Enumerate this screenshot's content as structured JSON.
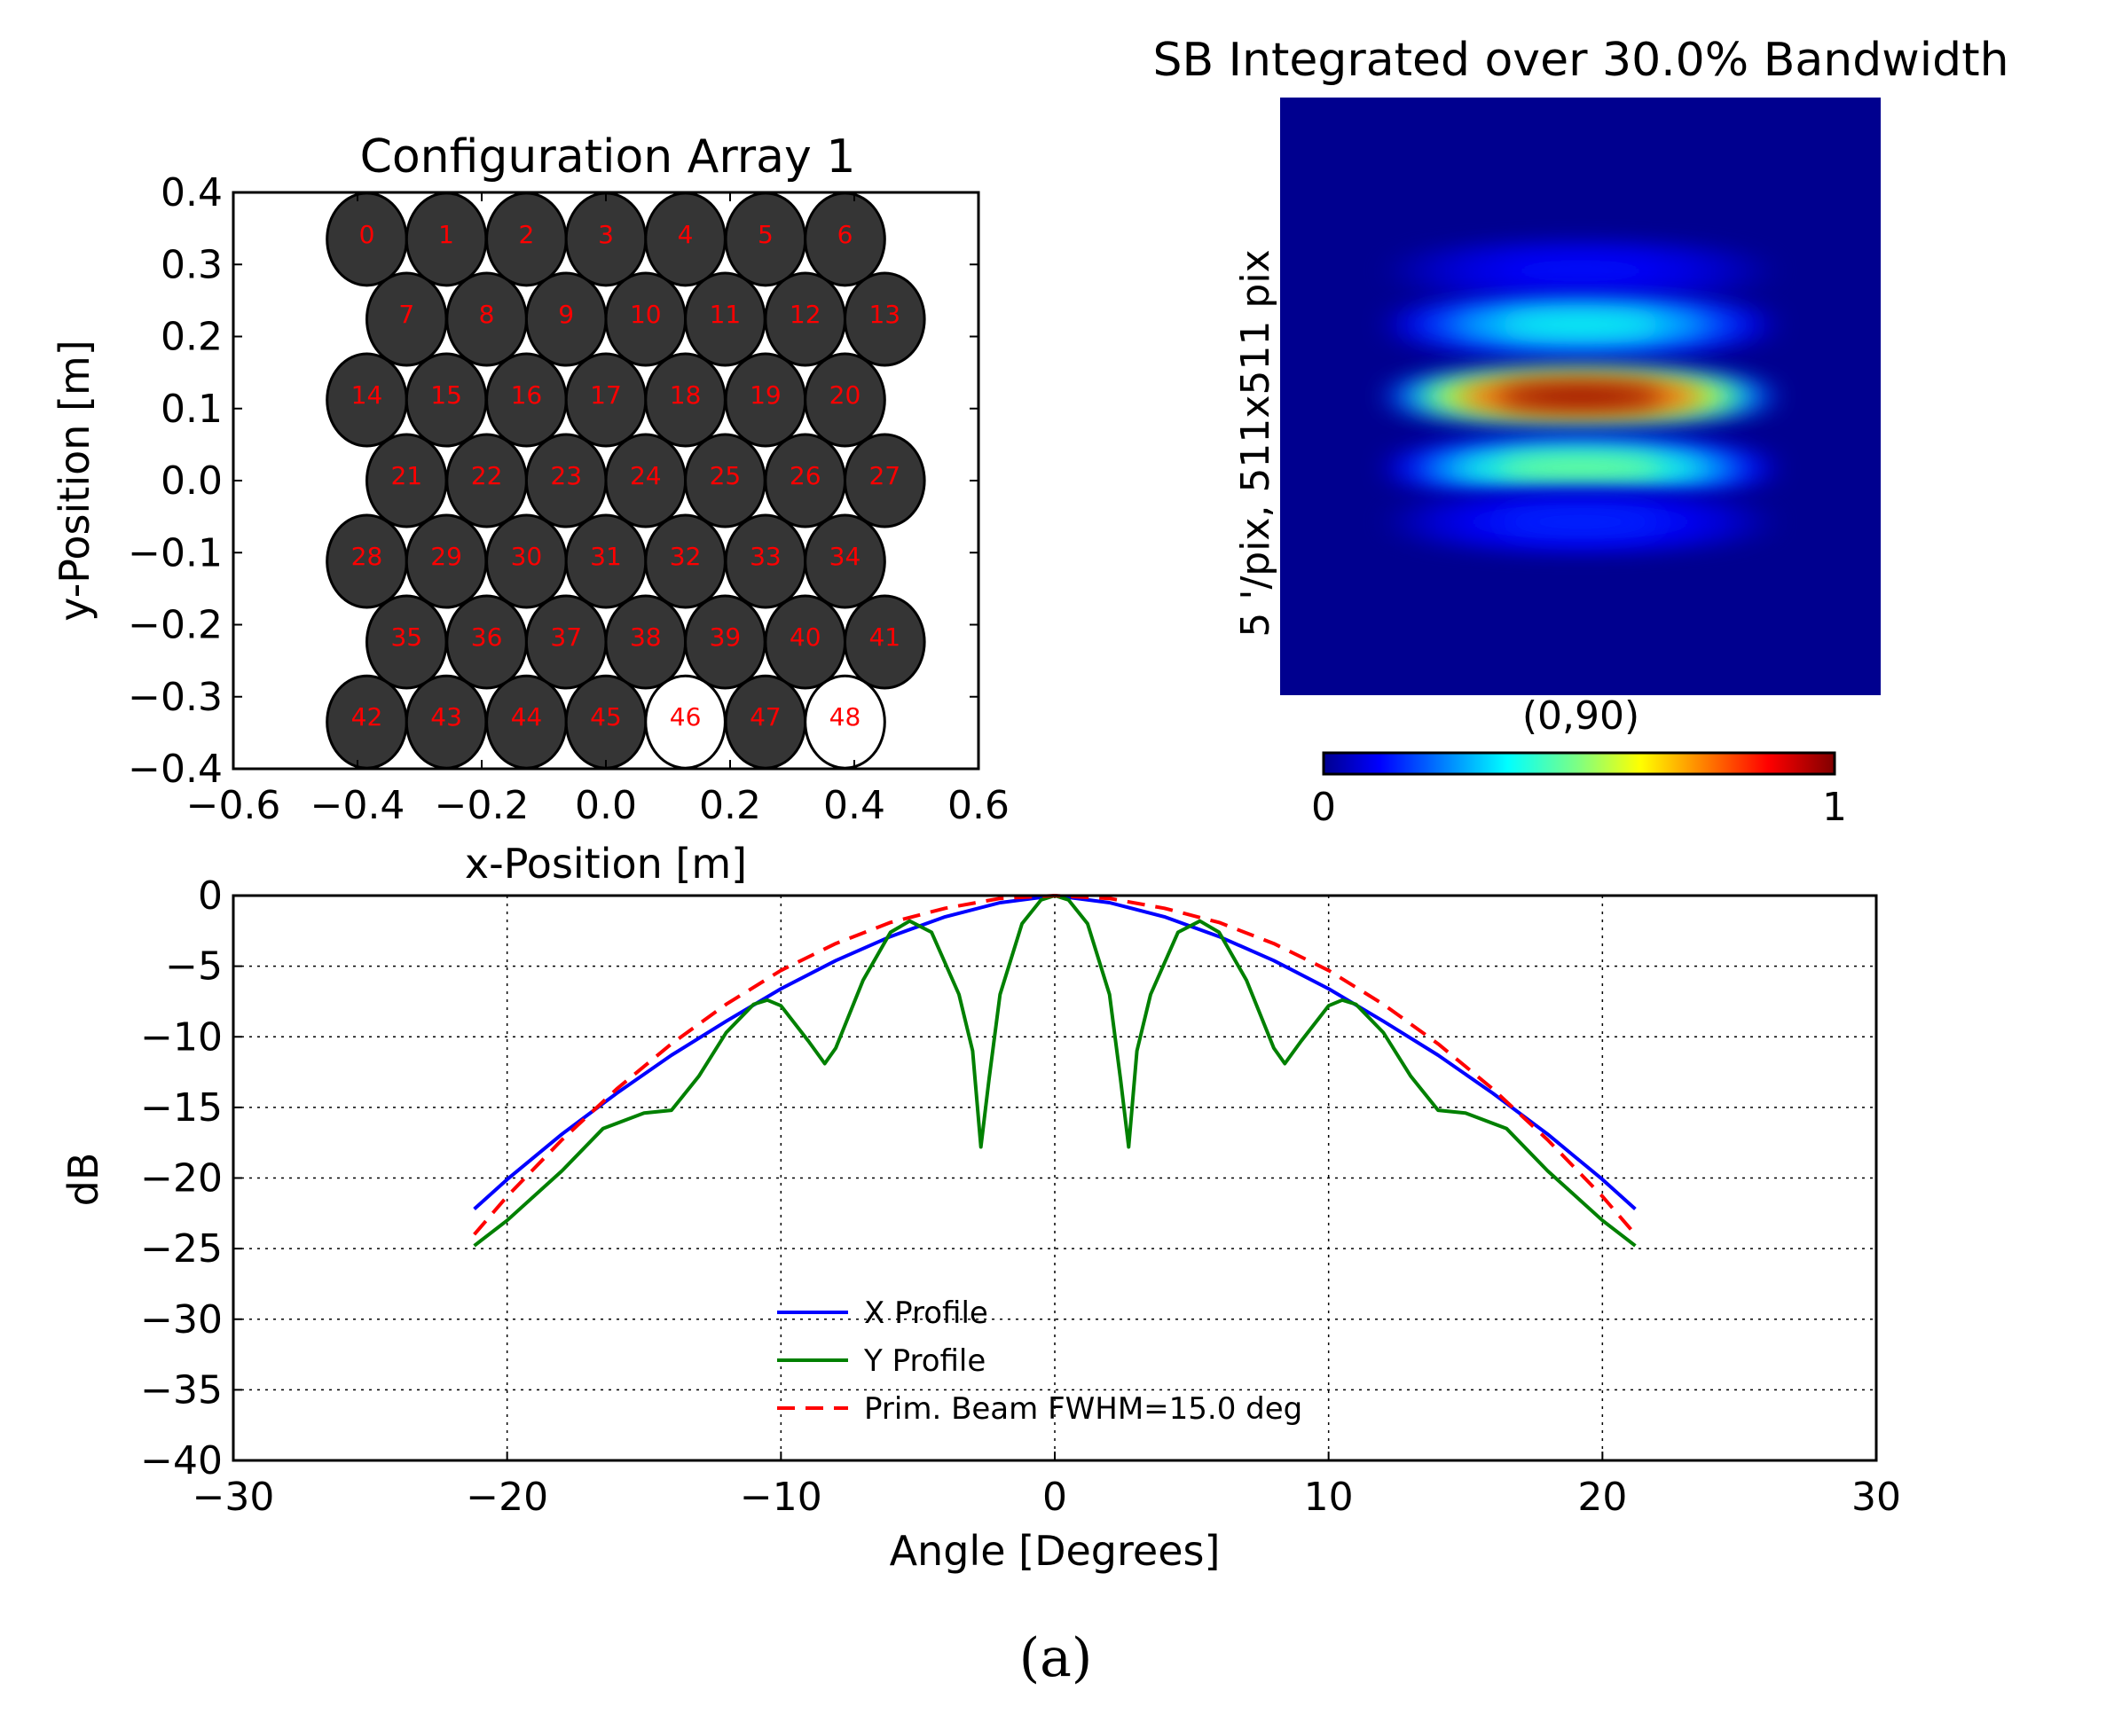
{
  "caption": "(a)",
  "chart_data": [
    {
      "type": "scatter",
      "title": "Configuration Array 1",
      "xlabel": "x-Position [m]",
      "ylabel": "y-Position [m]",
      "xlim": [
        -0.6,
        0.6
      ],
      "ylim": [
        -0.4,
        0.4
      ],
      "xticks": [
        "−0.6",
        "−0.4",
        "−0.2",
        "0.0",
        "0.2",
        "0.4",
        "0.6"
      ],
      "xtick_values": [
        -0.6,
        -0.4,
        -0.2,
        0.0,
        0.2,
        0.4,
        0.6
      ],
      "yticks": [
        "0.4",
        "0.3",
        "0.2",
        "0.1",
        "0.0",
        "−0.1",
        "−0.2",
        "−0.3",
        "−0.4"
      ],
      "ytick_values": [
        0.4,
        0.3,
        0.2,
        0.1,
        0.0,
        -0.1,
        -0.2,
        -0.3,
        -0.4
      ],
      "element_diameter_m": 0.128,
      "element_fill_color": "#353535",
      "inactive_fill_color": "#ffffff",
      "label_color": "#ff0000",
      "elements": [
        {
          "id": "0",
          "x": -0.385,
          "y": 0.335,
          "active": true
        },
        {
          "id": "1",
          "x": -0.257,
          "y": 0.335,
          "active": true
        },
        {
          "id": "2",
          "x": -0.128,
          "y": 0.335,
          "active": true
        },
        {
          "id": "3",
          "x": 0.0,
          "y": 0.335,
          "active": true
        },
        {
          "id": "4",
          "x": 0.128,
          "y": 0.335,
          "active": true
        },
        {
          "id": "5",
          "x": 0.257,
          "y": 0.335,
          "active": true
        },
        {
          "id": "6",
          "x": 0.385,
          "y": 0.335,
          "active": true
        },
        {
          "id": "7",
          "x": -0.321,
          "y": 0.224,
          "active": true
        },
        {
          "id": "8",
          "x": -0.192,
          "y": 0.224,
          "active": true
        },
        {
          "id": "9",
          "x": -0.064,
          "y": 0.224,
          "active": true
        },
        {
          "id": "10",
          "x": 0.064,
          "y": 0.224,
          "active": true
        },
        {
          "id": "11",
          "x": 0.192,
          "y": 0.224,
          "active": true
        },
        {
          "id": "12",
          "x": 0.321,
          "y": 0.224,
          "active": true
        },
        {
          "id": "13",
          "x": 0.449,
          "y": 0.224,
          "active": true
        },
        {
          "id": "14",
          "x": -0.385,
          "y": 0.112,
          "active": true
        },
        {
          "id": "15",
          "x": -0.257,
          "y": 0.112,
          "active": true
        },
        {
          "id": "16",
          "x": -0.128,
          "y": 0.112,
          "active": true
        },
        {
          "id": "17",
          "x": 0.0,
          "y": 0.112,
          "active": true
        },
        {
          "id": "18",
          "x": 0.128,
          "y": 0.112,
          "active": true
        },
        {
          "id": "19",
          "x": 0.257,
          "y": 0.112,
          "active": true
        },
        {
          "id": "20",
          "x": 0.385,
          "y": 0.112,
          "active": true
        },
        {
          "id": "21",
          "x": -0.321,
          "y": 0.0,
          "active": true
        },
        {
          "id": "22",
          "x": -0.192,
          "y": 0.0,
          "active": true
        },
        {
          "id": "23",
          "x": -0.064,
          "y": 0.0,
          "active": true
        },
        {
          "id": "24",
          "x": 0.064,
          "y": 0.0,
          "active": true
        },
        {
          "id": "25",
          "x": 0.192,
          "y": 0.0,
          "active": true
        },
        {
          "id": "26",
          "x": 0.321,
          "y": 0.0,
          "active": true
        },
        {
          "id": "27",
          "x": 0.449,
          "y": 0.0,
          "active": true
        },
        {
          "id": "28",
          "x": -0.385,
          "y": -0.112,
          "active": true
        },
        {
          "id": "29",
          "x": -0.257,
          "y": -0.112,
          "active": true
        },
        {
          "id": "30",
          "x": -0.128,
          "y": -0.112,
          "active": true
        },
        {
          "id": "31",
          "x": 0.0,
          "y": -0.112,
          "active": true
        },
        {
          "id": "32",
          "x": 0.128,
          "y": -0.112,
          "active": true
        },
        {
          "id": "33",
          "x": 0.257,
          "y": -0.112,
          "active": true
        },
        {
          "id": "34",
          "x": 0.385,
          "y": -0.112,
          "active": true
        },
        {
          "id": "35",
          "x": -0.321,
          "y": -0.224,
          "active": true
        },
        {
          "id": "36",
          "x": -0.192,
          "y": -0.224,
          "active": true
        },
        {
          "id": "37",
          "x": -0.064,
          "y": -0.224,
          "active": true
        },
        {
          "id": "38",
          "x": 0.064,
          "y": -0.224,
          "active": true
        },
        {
          "id": "39",
          "x": 0.192,
          "y": -0.224,
          "active": true
        },
        {
          "id": "40",
          "x": 0.321,
          "y": -0.224,
          "active": true
        },
        {
          "id": "41",
          "x": 0.449,
          "y": -0.224,
          "active": true
        },
        {
          "id": "42",
          "x": -0.385,
          "y": -0.335,
          "active": true
        },
        {
          "id": "43",
          "x": -0.257,
          "y": -0.335,
          "active": true
        },
        {
          "id": "44",
          "x": -0.128,
          "y": -0.335,
          "active": true
        },
        {
          "id": "45",
          "x": 0.0,
          "y": -0.335,
          "active": true
        },
        {
          "id": "46",
          "x": 0.128,
          "y": -0.335,
          "active": false
        },
        {
          "id": "47",
          "x": 0.257,
          "y": -0.335,
          "active": true
        },
        {
          "id": "48",
          "x": 0.385,
          "y": -0.335,
          "active": false
        }
      ]
    },
    {
      "type": "heatmap",
      "title": "SB Integrated over 30.0% Bandwidth",
      "ylabel": "5 '/pix,   511x511 pix",
      "xlabel": "(0,90)",
      "colormap": "jet",
      "colorbar_range": [
        0,
        1
      ],
      "colorbar_ticks": [
        "0",
        "1"
      ],
      "colorbar_tick_values": [
        0,
        1
      ],
      "background_color": "#00008f",
      "lobes": [
        {
          "y_offset": -0.42,
          "peak": 0.12
        },
        {
          "y_offset": -0.24,
          "peak": 0.38
        },
        {
          "y_offset": 0.0,
          "peak": 1.0
        },
        {
          "y_offset": 0.24,
          "peak": 0.5
        },
        {
          "y_offset": 0.42,
          "peak": 0.15
        }
      ]
    },
    {
      "type": "line",
      "xlabel": "Angle [Degrees]",
      "ylabel": "dB",
      "xlim": [
        -30,
        30
      ],
      "ylim": [
        -40,
        0
      ],
      "grid": true,
      "legend_placement": "lower-center",
      "xticks": [
        "−30",
        "−20",
        "−10",
        "0",
        "10",
        "20",
        "30"
      ],
      "xtick_values": [
        -30,
        -20,
        -10,
        0,
        10,
        20,
        30
      ],
      "yticks": [
        "0",
        "−5",
        "−10",
        "−15",
        "−20",
        "−25",
        "−30",
        "−35",
        "−40"
      ],
      "ytick_values": [
        0,
        -5,
        -10,
        -15,
        -20,
        -25,
        -30,
        -35,
        -40
      ],
      "series": [
        {
          "name": "X Profile",
          "color": "#0000ff",
          "dash": "solid",
          "x": [
            -21.2,
            -20,
            -18,
            -16,
            -14,
            -12,
            -10,
            -8,
            -6,
            -4,
            -2,
            0,
            2,
            4,
            6,
            8,
            10,
            12,
            14,
            16,
            18,
            20,
            21.2
          ],
          "y": [
            -22.2,
            -20.1,
            -16.9,
            -14.0,
            -11.3,
            -8.9,
            -6.6,
            -4.6,
            -2.9,
            -1.5,
            -0.5,
            0,
            -0.5,
            -1.5,
            -2.9,
            -4.6,
            -6.6,
            -8.9,
            -11.3,
            -14.0,
            -16.9,
            -20.1,
            -22.2
          ]
        },
        {
          "name": "Y Profile",
          "color": "#008000",
          "dash": "solid",
          "x": [
            -21.2,
            -20,
            -18,
            -16.5,
            -15,
            -14,
            -13,
            -12,
            -11,
            -10.5,
            -10,
            -9,
            -8.4,
            -8,
            -7,
            -6,
            -5.3,
            -4.5,
            -3.5,
            -3,
            -2.7,
            -2.4,
            -2,
            -1.2,
            -0.5,
            0,
            0.5,
            1.2,
            2,
            2.4,
            2.7,
            3,
            3.5,
            4.5,
            5.3,
            6,
            7,
            8,
            8.4,
            9,
            10,
            10.5,
            11,
            12,
            13,
            14,
            15,
            16.5,
            18,
            20,
            21.2
          ],
          "y": [
            -24.8,
            -23.0,
            -19.5,
            -16.5,
            -15.4,
            -15.2,
            -12.8,
            -9.7,
            -7.7,
            -7.4,
            -7.8,
            -10.3,
            -11.9,
            -10.8,
            -6.0,
            -2.6,
            -1.8,
            -2.6,
            -7.0,
            -11.0,
            -17.8,
            -13.0,
            -7.0,
            -2.0,
            -0.3,
            0,
            -0.3,
            -2.0,
            -7.0,
            -13.0,
            -17.8,
            -11.0,
            -7.0,
            -2.6,
            -1.8,
            -2.6,
            -6.0,
            -10.8,
            -11.9,
            -10.3,
            -7.8,
            -7.4,
            -7.7,
            -9.7,
            -12.8,
            -15.2,
            -15.4,
            -16.5,
            -19.5,
            -23.0,
            -24.8
          ]
        },
        {
          "name": "Prim. Beam FWHM=15.0 deg",
          "color": "#ff0000",
          "dash": "dashed",
          "x": [
            -21.2,
            -20,
            -18,
            -16,
            -14,
            -12,
            -10,
            -8,
            -6,
            -4,
            -2,
            0,
            2,
            4,
            6,
            8,
            10,
            12,
            14,
            16,
            18,
            20,
            21.2
          ],
          "y": [
            -24.0,
            -21.3,
            -17.3,
            -13.7,
            -10.5,
            -7.7,
            -5.3,
            -3.4,
            -1.9,
            -0.9,
            -0.2,
            0,
            -0.2,
            -0.9,
            -1.9,
            -3.4,
            -5.3,
            -7.7,
            -10.5,
            -13.7,
            -17.3,
            -21.3,
            -24.0
          ]
        }
      ]
    }
  ]
}
